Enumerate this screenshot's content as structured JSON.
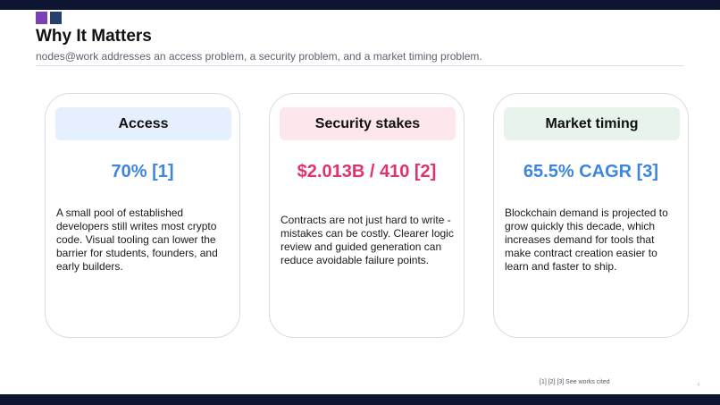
{
  "header": {
    "title": "Why It Matters",
    "subtitle": "nodes@work addresses an access problem, a security problem, and a market timing problem."
  },
  "colors": {
    "brand_purple": "#7b3fb8",
    "brand_navy": "#24406e",
    "bar": "#0d1530"
  },
  "cards": [
    {
      "heading": "Access",
      "stat": "70% [1]",
      "stat_color": "#3d86e0",
      "header_bg": "#e6effd",
      "body": "A small pool of established developers still writes most crypto code. Visual tooling can lower the barrier for students, founders, and early builders."
    },
    {
      "heading": "Security stakes",
      "stat": "$2.013B / 410 [2]",
      "stat_color": "#e0336b",
      "header_bg": "#fde6ec",
      "body": "Contracts are not just hard to write - mistakes can be costly. Clearer logic review and guided generation can reduce avoidable failure points."
    },
    {
      "heading": "Market timing",
      "stat": "65.5% CAGR [3]",
      "stat_color": "#3d86e0",
      "header_bg": "#e8f3ec",
      "body": "Blockchain demand is projected to grow quickly this decade, which increases demand for tools that make contract creation easier to learn and faster to ship."
    }
  ],
  "footer": {
    "note": "[1] [2] [3] See works cited",
    "page_number": "4"
  }
}
